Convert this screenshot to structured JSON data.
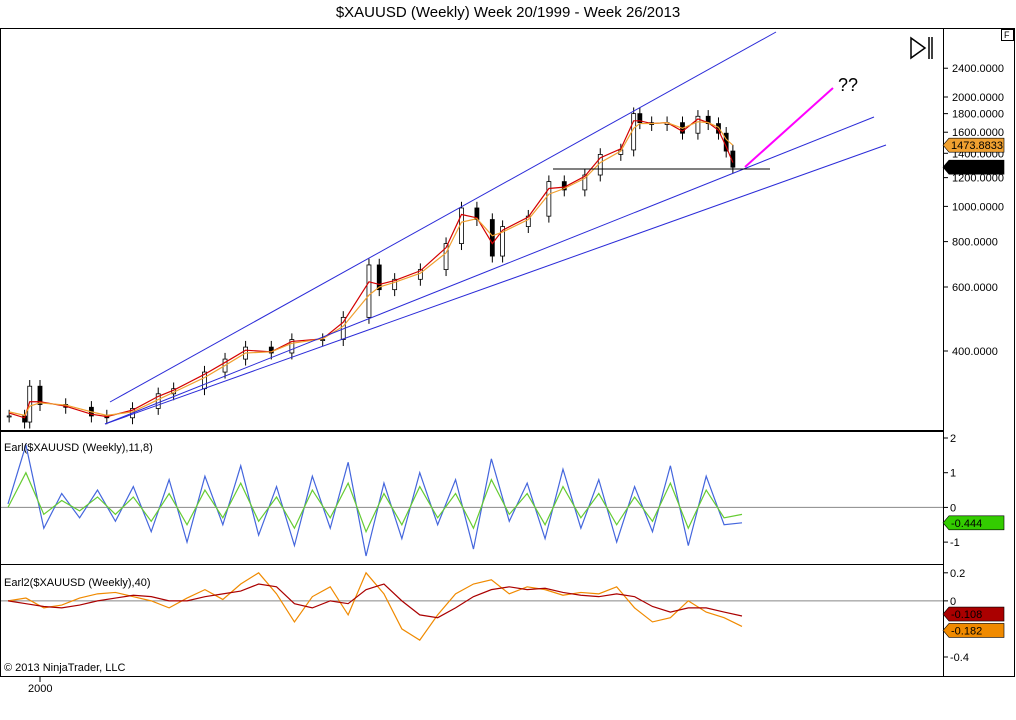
{
  "title": "$XAUUSD (Weekly)  Week 20/1999 - Week 26/2013",
  "copyright": "© 2013 NinjaTrader, LLC",
  "corner_button": "F",
  "annotation": "??",
  "x_axis": {
    "tick_label": "2000"
  },
  "colors": {
    "price_up": "#000000",
    "price_down": "#000000",
    "price_up_fill": "#ffffff",
    "price_down_fill": "#000000",
    "ma_fast": "#d40000",
    "ma_slow": "#f0a030",
    "channel_line": "#2b2bd8",
    "support_line": "#000000",
    "projection": "#ff00ff",
    "earl_fast": "#4466dd",
    "earl_slow": "#66cc33",
    "earl2_fast": "#f08a00",
    "earl2_slow": "#aa0000"
  },
  "chart_data": [
    {
      "panel": "price",
      "type": "candlestick",
      "title": "$XAUUSD (Weekly)  Week 20/1999 - Week 26/2013",
      "scale": "log",
      "y_ticks": [
        "2400.0000",
        "2000.0000",
        "1800.0000",
        "1600.0000",
        "1400.0000",
        "1200.0000",
        "1000.0000",
        "800.0000",
        "600.0000",
        "400.0000"
      ],
      "last_labels": [
        {
          "text": "1473.8833",
          "value": 1473.8833,
          "color": "#f0a030"
        },
        {
          "text": "1282.0500",
          "value": 1282.05,
          "color": "#000000"
        }
      ],
      "x": [
        1999.4,
        1999.7,
        1999.8,
        2000.0,
        2000.5,
        2001.0,
        2001.3,
        2001.8,
        2002.3,
        2002.6,
        2003.2,
        2003.6,
        2004.0,
        2004.5,
        2004.9,
        2005.5,
        2005.9,
        2006.4,
        2006.6,
        2006.9,
        2007.4,
        2007.9,
        2008.2,
        2008.5,
        2008.8,
        2009.0,
        2009.5,
        2009.9,
        2010.2,
        2010.6,
        2010.9,
        2011.3,
        2011.55,
        2011.67,
        2011.9,
        2012.2,
        2012.5,
        2012.8,
        2013.0,
        2013.2,
        2013.35,
        2013.48
      ],
      "close": [
        265,
        255,
        320,
        285,
        280,
        265,
        262,
        278,
        305,
        315,
        350,
        380,
        410,
        395,
        430,
        430,
        495,
        690,
        590,
        630,
        670,
        790,
        990,
        920,
        730,
        880,
        940,
        1170,
        1110,
        1220,
        1390,
        1430,
        1800,
        1700,
        1680,
        1700,
        1590,
        1770,
        1690,
        1590,
        1420,
        1282
      ],
      "series": [
        {
          "name": "ma_fast",
          "values": [
            270,
            262,
            290,
            290,
            282,
            268,
            264,
            275,
            300,
            312,
            345,
            372,
            402,
            398,
            425,
            432,
            480,
            620,
            610,
            625,
            665,
            770,
            950,
            930,
            790,
            860,
            935,
            1120,
            1130,
            1210,
            1360,
            1440,
            1720,
            1720,
            1690,
            1700,
            1610,
            1740,
            1700,
            1620,
            1460,
            1320
          ]
        },
        {
          "name": "ma_slow",
          "values": [
            272,
            266,
            282,
            288,
            284,
            272,
            266,
            272,
            294,
            308,
            338,
            365,
            395,
            398,
            420,
            432,
            468,
            570,
            600,
            618,
            655,
            745,
            905,
            925,
            830,
            850,
            920,
            1080,
            1120,
            1195,
            1320,
            1420,
            1640,
            1690,
            1690,
            1700,
            1640,
            1710,
            1700,
            1650,
            1530,
            1474
          ]
        }
      ],
      "support_level": 1270
    },
    {
      "panel": "earl",
      "type": "line",
      "label": "Earl($XAUUSD (Weekly),11,8)",
      "y_ticks": [
        "2",
        "1",
        "0",
        "-1"
      ],
      "ylim": [
        -1.4,
        2.0
      ],
      "last_label": {
        "text": "-0.444",
        "value": -0.444,
        "color": "#33cc00"
      },
      "series": [
        {
          "name": "fast",
          "values": [
            0.1,
            1.8,
            -0.6,
            0.4,
            -0.3,
            0.5,
            -0.4,
            0.6,
            -0.7,
            0.8,
            -1.0,
            0.9,
            -0.5,
            1.2,
            -0.8,
            0.6,
            -1.1,
            0.9,
            -0.6,
            1.3,
            -1.4,
            0.7,
            -0.9,
            1.0,
            -0.5,
            0.8,
            -1.2,
            1.4,
            -0.4,
            0.7,
            -0.9,
            1.1,
            -0.6,
            0.8,
            -1.0,
            0.6,
            -0.7,
            1.2,
            -1.1,
            0.9,
            -0.5,
            -0.444
          ]
        },
        {
          "name": "slow",
          "values": [
            0.0,
            1.0,
            -0.2,
            0.2,
            -0.1,
            0.3,
            -0.2,
            0.3,
            -0.4,
            0.4,
            -0.5,
            0.5,
            -0.3,
            0.7,
            -0.4,
            0.3,
            -0.6,
            0.5,
            -0.3,
            0.7,
            -0.7,
            0.4,
            -0.5,
            0.6,
            -0.3,
            0.4,
            -0.6,
            0.8,
            -0.2,
            0.4,
            -0.5,
            0.6,
            -0.3,
            0.4,
            -0.5,
            0.3,
            -0.4,
            0.7,
            -0.6,
            0.5,
            -0.3,
            -0.2
          ]
        }
      ]
    },
    {
      "panel": "earl2",
      "type": "line",
      "label": "Earl2($XAUUSD (Weekly),40)",
      "y_ticks": [
        "0.2",
        "0",
        "-0.4"
      ],
      "ylim": [
        -0.45,
        0.22
      ],
      "last_labels": [
        {
          "text": "-0.108",
          "value": -0.108,
          "color": "#aa0000"
        },
        {
          "text": "-0.182",
          "value": -0.182,
          "color": "#f08a00"
        }
      ],
      "series": [
        {
          "name": "fast",
          "values": [
            0.0,
            0.02,
            -0.05,
            -0.03,
            0.02,
            0.05,
            0.06,
            0.03,
            0.0,
            -0.05,
            0.02,
            0.08,
            0.01,
            0.12,
            0.2,
            0.05,
            -0.15,
            0.03,
            0.1,
            -0.1,
            0.2,
            0.05,
            -0.2,
            -0.28,
            -0.1,
            0.05,
            0.12,
            0.15,
            0.05,
            0.1,
            0.08,
            0.04,
            0.06,
            0.05,
            0.1,
            -0.05,
            -0.15,
            -0.12,
            0.0,
            -0.08,
            -0.12,
            -0.182
          ]
        },
        {
          "name": "slow",
          "values": [
            0.0,
            -0.02,
            -0.04,
            -0.05,
            -0.03,
            0.0,
            0.02,
            0.04,
            0.03,
            0.0,
            0.0,
            0.03,
            0.05,
            0.07,
            0.12,
            0.1,
            -0.02,
            -0.05,
            0.0,
            -0.02,
            0.08,
            0.12,
            0.0,
            -0.1,
            -0.12,
            -0.05,
            0.03,
            0.08,
            0.1,
            0.08,
            0.09,
            0.06,
            0.04,
            0.03,
            0.05,
            0.03,
            -0.04,
            -0.08,
            -0.05,
            -0.05,
            -0.08,
            -0.108
          ]
        }
      ]
    }
  ]
}
